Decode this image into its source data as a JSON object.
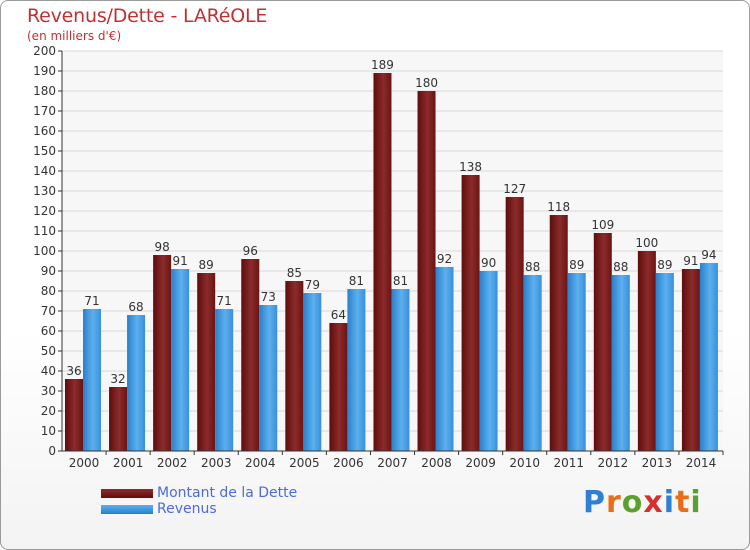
{
  "header": {
    "title": "Revenus/Dette - LARéOLE",
    "subtitle": "(en milliers d'€)"
  },
  "brand": {
    "letters": [
      "P",
      "r",
      "o",
      "x",
      "i",
      "t",
      "i"
    ],
    "colors": [
      "#2f7fd2",
      "#e86f1a",
      "#5aa02c",
      "#d62f2f",
      "#2f7fd2",
      "#e86f1a",
      "#5aa02c"
    ]
  },
  "chart_data": {
    "type": "bar",
    "categories": [
      "2000",
      "2001",
      "2002",
      "2003",
      "2004",
      "2005",
      "2006",
      "2007",
      "2008",
      "2009",
      "2010",
      "2011",
      "2012",
      "2013",
      "2014"
    ],
    "series": [
      {
        "name": "Montant de la Dette",
        "color": "#7a1a1a",
        "values": [
          36,
          32,
          98,
          89,
          96,
          85,
          64,
          189,
          180,
          138,
          127,
          118,
          109,
          100,
          91
        ]
      },
      {
        "name": "Revenus",
        "color": "#3b93db",
        "values": [
          71,
          68,
          91,
          71,
          73,
          79,
          81,
          81,
          92,
          90,
          88,
          89,
          88,
          89,
          94
        ]
      }
    ],
    "ylim": [
      0,
      200
    ],
    "yticks": [
      0,
      10,
      20,
      30,
      40,
      50,
      60,
      70,
      80,
      90,
      100,
      110,
      120,
      130,
      140,
      150,
      160,
      170,
      180,
      190,
      200
    ],
    "grid": true,
    "legend": "bottom-left"
  }
}
